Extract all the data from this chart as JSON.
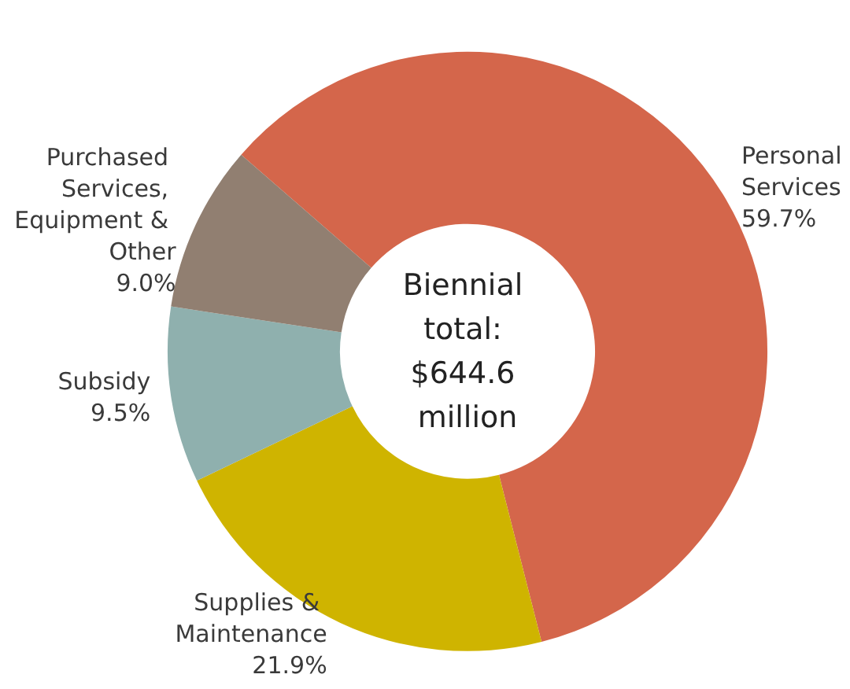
{
  "chart_data": {
    "type": "donut",
    "categories": [
      "Personal Services",
      "Supplies & Maintenance",
      "Subsidy",
      "Purchased Services, Equipment & Other"
    ],
    "values": [
      59.7,
      21.9,
      9.5,
      9.0
    ],
    "colors": [
      "#d4664b",
      "#cfb400",
      "#8fb0ae",
      "#917f71"
    ],
    "value_labels": [
      "59.7%",
      "21.9%",
      "9.5%",
      "9.0%"
    ],
    "annotations": [
      "Biennial total: $644.6 million"
    ]
  }
}
